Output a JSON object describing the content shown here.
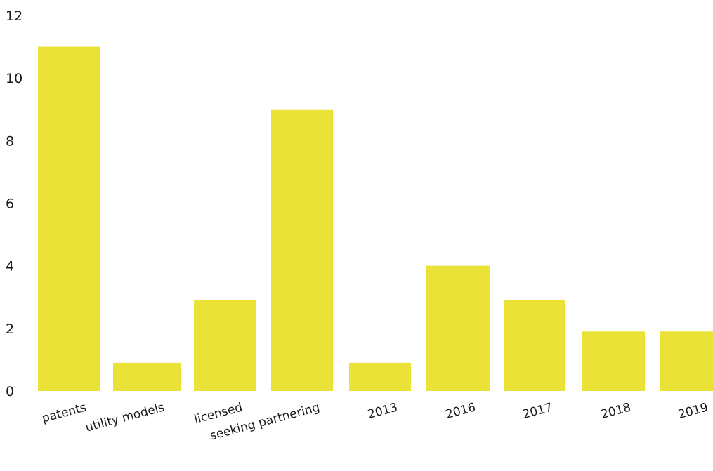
{
  "chart_data": {
    "type": "bar",
    "categories": [
      "patents",
      "utility models",
      "licensed",
      "seeking partnering",
      "2013",
      "2016",
      "2017",
      "2018",
      "2019"
    ],
    "values": [
      11,
      0.9,
      2.9,
      9,
      0.9,
      4,
      2.9,
      1.9,
      1.9
    ],
    "title": "",
    "xlabel": "",
    "ylabel": "",
    "ylim": [
      0,
      12
    ],
    "yticks": [
      0,
      2,
      4,
      6,
      8,
      10,
      12
    ],
    "grid": false,
    "legend": "none",
    "bar_color": "#EAE236"
  }
}
